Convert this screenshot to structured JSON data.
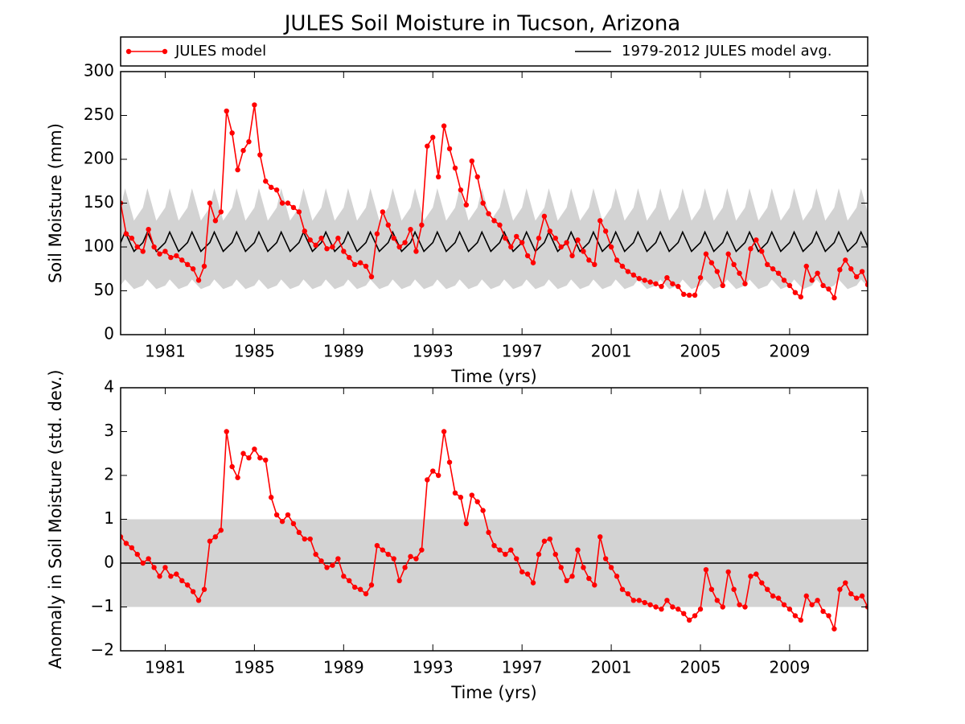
{
  "chart_data": [
    {
      "type": "line",
      "title": "JULES Soil Moisture in Tucson, Arizona",
      "xlabel": "Time (yrs)",
      "ylabel": "Soil Moisture (mm)",
      "xlim": [
        1979,
        2012.5
      ],
      "xticks": [
        1981,
        1985,
        1989,
        1993,
        1997,
        2001,
        2005,
        2009
      ],
      "ylim": [
        0,
        300
      ],
      "yticks": [
        0,
        50,
        100,
        150,
        200,
        250,
        300
      ],
      "legend": "top",
      "series": [
        {
          "name": "JULES model",
          "color": "#ff0000",
          "marker": true,
          "x": [
            1979,
            1979.25,
            1979.5,
            1979.75,
            1980,
            1980.25,
            1980.5,
            1980.75,
            1981,
            1981.25,
            1981.5,
            1981.75,
            1982,
            1982.25,
            1982.5,
            1982.75,
            1983,
            1983.25,
            1983.5,
            1983.75,
            1984,
            1984.25,
            1984.5,
            1984.75,
            1985,
            1985.25,
            1985.5,
            1985.75,
            1986,
            1986.25,
            1986.5,
            1986.75,
            1987,
            1987.25,
            1987.5,
            1987.75,
            1988,
            1988.25,
            1988.5,
            1988.75,
            1989,
            1989.25,
            1989.5,
            1989.75,
            1990,
            1990.25,
            1990.5,
            1990.75,
            1991,
            1991.25,
            1991.5,
            1991.75,
            1992,
            1992.25,
            1992.5,
            1992.75,
            1993,
            1993.25,
            1993.5,
            1993.75,
            1994,
            1994.25,
            1994.5,
            1994.75,
            1995,
            1995.25,
            1995.5,
            1995.75,
            1996,
            1996.25,
            1996.5,
            1996.75,
            1997,
            1997.25,
            1997.5,
            1997.75,
            1998,
            1998.25,
            1998.5,
            1998.75,
            1999,
            1999.25,
            1999.5,
            1999.75,
            2000,
            2000.25,
            2000.5,
            2000.75,
            2001,
            2001.25,
            2001.5,
            2001.75,
            2002,
            2002.25,
            2002.5,
            2002.75,
            2003,
            2003.25,
            2003.5,
            2003.75,
            2004,
            2004.25,
            2004.5,
            2004.75,
            2005,
            2005.25,
            2005.5,
            2005.75,
            2006,
            2006.25,
            2006.5,
            2006.75,
            2007,
            2007.25,
            2007.5,
            2007.75,
            2008,
            2008.25,
            2008.5,
            2008.75,
            2009,
            2009.25,
            2009.5,
            2009.75,
            2010,
            2010.25,
            2010.5,
            2010.75,
            2011,
            2011.25,
            2011.5,
            2011.75,
            2012,
            2012.25,
            2012.5
          ],
          "values": [
            150,
            115,
            110,
            100,
            95,
            120,
            100,
            92,
            95,
            88,
            90,
            85,
            80,
            75,
            62,
            78,
            150,
            130,
            140,
            255,
            230,
            188,
            210,
            220,
            262,
            205,
            175,
            168,
            165,
            150,
            150,
            145,
            140,
            118,
            108,
            102,
            110,
            98,
            100,
            110,
            95,
            88,
            80,
            82,
            78,
            66,
            115,
            140,
            125,
            110,
            100,
            105,
            120,
            95,
            125,
            215,
            225,
            180,
            238,
            212,
            190,
            165,
            148,
            198,
            180,
            150,
            138,
            130,
            125,
            110,
            100,
            112,
            105,
            90,
            82,
            110,
            135,
            118,
            110,
            100,
            105,
            90,
            108,
            95,
            85,
            80,
            130,
            118,
            100,
            85,
            78,
            72,
            68,
            64,
            62,
            60,
            58,
            55,
            65,
            58,
            55,
            46,
            45,
            45,
            65,
            92,
            82,
            72,
            56,
            92,
            80,
            70,
            58,
            98,
            108,
            95,
            80,
            75,
            70,
            62,
            56,
            48,
            43,
            78,
            62,
            70,
            56,
            52,
            42,
            74,
            85,
            75,
            66,
            72,
            57
          ]
        },
        {
          "name": "1979-2012 JULES model avg.",
          "color": "#000000",
          "band_color": "#d3d3d3",
          "x": [
            1979,
            1979.2,
            1979.6,
            1980,
            1980.2,
            1980.6,
            1981,
            1981.2,
            1981.6,
            1982,
            1982.2,
            1982.6,
            1983,
            1983.2,
            1983.6,
            1984,
            1984.2,
            1984.6,
            1985,
            1985.2,
            1985.6,
            1986,
            1986.2,
            1986.6,
            1987,
            1987.2,
            1987.6,
            1988,
            1988.2,
            1988.6,
            1989,
            1989.2,
            1989.6,
            1990,
            1990.2,
            1990.6,
            1991,
            1991.2,
            1991.6,
            1992,
            1992.2,
            1992.6,
            1993,
            1993.2,
            1993.6,
            1994,
            1994.2,
            1994.6,
            1995,
            1995.2,
            1995.6,
            1996,
            1996.2,
            1996.6,
            1997,
            1997.2,
            1997.6,
            1998,
            1998.2,
            1998.6,
            1999,
            1999.2,
            1999.6,
            2000,
            2000.2,
            2000.6,
            2001,
            2001.2,
            2001.6,
            2002,
            2002.2,
            2002.6,
            2003,
            2003.2,
            2003.6,
            2004,
            2004.2,
            2004.6,
            2005,
            2005.2,
            2005.6,
            2006,
            2006.2,
            2006.6,
            2007,
            2007.2,
            2007.6,
            2008,
            2008.2,
            2008.6,
            2009,
            2009.2,
            2009.6,
            2010,
            2010.2,
            2010.6,
            2011,
            2011.2,
            2011.6,
            2012,
            2012.2,
            2012.6
          ],
          "values": [
            105,
            117,
            95,
            105,
            117,
            95,
            105,
            117,
            95,
            105,
            117,
            95,
            105,
            117,
            95,
            105,
            117,
            95,
            105,
            117,
            95,
            105,
            117,
            95,
            105,
            117,
            95,
            105,
            117,
            95,
            105,
            117,
            95,
            105,
            117,
            95,
            105,
            117,
            95,
            105,
            117,
            95,
            105,
            117,
            95,
            105,
            117,
            95,
            105,
            117,
            95,
            105,
            117,
            95,
            105,
            117,
            95,
            105,
            117,
            95,
            105,
            117,
            95,
            105,
            117,
            95,
            105,
            117,
            95,
            105,
            117,
            95,
            105,
            117,
            95,
            105,
            117,
            95,
            105,
            117,
            95,
            105,
            117,
            95,
            105,
            117,
            95,
            105,
            117,
            95,
            105,
            117,
            95,
            105,
            117,
            95,
            105,
            117,
            95,
            105,
            117,
            95
          ],
          "band_upper": [
            145,
            167,
            130,
            145,
            167,
            130,
            145,
            167,
            130,
            145,
            167,
            130,
            145,
            167,
            130,
            145,
            167,
            130,
            145,
            167,
            130,
            145,
            167,
            130,
            145,
            167,
            130,
            145,
            167,
            130,
            145,
            167,
            130,
            145,
            167,
            130,
            145,
            167,
            130,
            145,
            167,
            130,
            145,
            167,
            130,
            145,
            167,
            130,
            145,
            167,
            130,
            145,
            167,
            130,
            145,
            167,
            130,
            145,
            167,
            130,
            145,
            167,
            130,
            145,
            167,
            130,
            145,
            167,
            130,
            145,
            167,
            130,
            145,
            167,
            130,
            145,
            167,
            130,
            145,
            167,
            130,
            145,
            167,
            130,
            145,
            167,
            130,
            145,
            167,
            130,
            145,
            167,
            130,
            145,
            167,
            130,
            145,
            167,
            130,
            145,
            167,
            130
          ],
          "band_lower": [
            56,
            63,
            52,
            56,
            63,
            52,
            56,
            63,
            52,
            56,
            63,
            52,
            56,
            63,
            52,
            56,
            63,
            52,
            56,
            63,
            52,
            56,
            63,
            52,
            56,
            63,
            52,
            56,
            63,
            52,
            56,
            63,
            52,
            56,
            63,
            52,
            56,
            63,
            52,
            56,
            63,
            52,
            56,
            63,
            52,
            56,
            63,
            52,
            56,
            63,
            52,
            56,
            63,
            52,
            56,
            63,
            52,
            56,
            63,
            52,
            56,
            63,
            52,
            56,
            63,
            52,
            56,
            63,
            52,
            56,
            63,
            52,
            56,
            63,
            52,
            56,
            63,
            52,
            56,
            63,
            52,
            56,
            63,
            52,
            56,
            63,
            52,
            56,
            63,
            52,
            56,
            63,
            52,
            56,
            63,
            52,
            56,
            63,
            52,
            56,
            63,
            52
          ]
        }
      ]
    },
    {
      "type": "line",
      "xlabel": "Time (yrs)",
      "ylabel": "Anomaly in Soil Moisture (std. dev.)",
      "xlim": [
        1979,
        2012.5
      ],
      "xticks": [
        1981,
        1985,
        1989,
        1993,
        1997,
        2001,
        2005,
        2009
      ],
      "ylim": [
        -2,
        4
      ],
      "yticks": [
        {
          "value": -2,
          "label": "−2"
        },
        {
          "value": -1,
          "label": "−1"
        },
        0,
        1,
        2,
        3,
        4
      ],
      "band": [
        -1,
        1
      ],
      "band_color": "#d3d3d3",
      "zero_line": 0,
      "series": [
        {
          "color": "#ff0000",
          "marker": true,
          "x": [
            1979,
            1979.25,
            1979.5,
            1979.75,
            1980,
            1980.25,
            1980.5,
            1980.75,
            1981,
            1981.25,
            1981.5,
            1981.75,
            1982,
            1982.25,
            1982.5,
            1982.75,
            1983,
            1983.25,
            1983.5,
            1983.75,
            1984,
            1984.25,
            1984.5,
            1984.75,
            1985,
            1985.25,
            1985.5,
            1985.75,
            1986,
            1986.25,
            1986.5,
            1986.75,
            1987,
            1987.25,
            1987.5,
            1987.75,
            1988,
            1988.25,
            1988.5,
            1988.75,
            1989,
            1989.25,
            1989.5,
            1989.75,
            1990,
            1990.25,
            1990.5,
            1990.75,
            1991,
            1991.25,
            1991.5,
            1991.75,
            1992,
            1992.25,
            1992.5,
            1992.75,
            1993,
            1993.25,
            1993.5,
            1993.75,
            1994,
            1994.25,
            1994.5,
            1994.75,
            1995,
            1995.25,
            1995.5,
            1995.75,
            1996,
            1996.25,
            1996.5,
            1996.75,
            1997,
            1997.25,
            1997.5,
            1997.75,
            1998,
            1998.25,
            1998.5,
            1998.75,
            1999,
            1999.25,
            1999.5,
            1999.75,
            2000,
            2000.25,
            2000.5,
            2000.75,
            2001,
            2001.25,
            2001.5,
            2001.75,
            2002,
            2002.25,
            2002.5,
            2002.75,
            2003,
            2003.25,
            2003.5,
            2003.75,
            2004,
            2004.25,
            2004.5,
            2004.75,
            2005,
            2005.25,
            2005.5,
            2005.75,
            2006,
            2006.25,
            2006.5,
            2006.75,
            2007,
            2007.25,
            2007.5,
            2007.75,
            2008,
            2008.25,
            2008.5,
            2008.75,
            2009,
            2009.25,
            2009.5,
            2009.75,
            2010,
            2010.25,
            2010.5,
            2010.75,
            2011,
            2011.25,
            2011.5,
            2011.75,
            2012,
            2012.25,
            2012.5
          ],
          "values": [
            0.6,
            0.45,
            0.35,
            0.2,
            0,
            0.1,
            -0.1,
            -0.3,
            -0.1,
            -0.3,
            -0.25,
            -0.4,
            -0.5,
            -0.65,
            -0.85,
            -0.6,
            0.5,
            0.6,
            0.75,
            3.0,
            2.2,
            1.95,
            2.5,
            2.4,
            2.6,
            2.4,
            2.35,
            1.5,
            1.1,
            0.95,
            1.1,
            0.9,
            0.7,
            0.55,
            0.55,
            0.2,
            0.05,
            -0.1,
            -0.05,
            0.1,
            -0.3,
            -0.4,
            -0.55,
            -0.6,
            -0.7,
            -0.5,
            0.4,
            0.3,
            0.2,
            0.1,
            -0.4,
            -0.1,
            0.15,
            0.1,
            0.3,
            1.9,
            2.1,
            2.0,
            3.0,
            2.3,
            1.6,
            1.5,
            0.9,
            1.55,
            1.4,
            1.2,
            0.7,
            0.4,
            0.3,
            0.2,
            0.3,
            0.1,
            -0.2,
            -0.25,
            -0.45,
            0.2,
            0.5,
            0.55,
            0.2,
            -0.1,
            -0.4,
            -0.3,
            0.3,
            -0.1,
            -0.35,
            -0.5,
            0.6,
            0.1,
            -0.1,
            -0.3,
            -0.6,
            -0.7,
            -0.85,
            -0.85,
            -0.9,
            -0.95,
            -1.0,
            -1.05,
            -0.85,
            -1.0,
            -1.05,
            -1.15,
            -1.3,
            -1.2,
            -1.05,
            -0.15,
            -0.6,
            -0.85,
            -1.0,
            -0.2,
            -0.6,
            -0.95,
            -1.0,
            -0.3,
            -0.25,
            -0.45,
            -0.6,
            -0.75,
            -0.8,
            -0.95,
            -1.05,
            -1.2,
            -1.3,
            -0.75,
            -0.95,
            -0.85,
            -1.1,
            -1.2,
            -1.5,
            -0.6,
            -0.45,
            -0.7,
            -0.8,
            -0.75,
            -1.0
          ]
        }
      ]
    }
  ]
}
